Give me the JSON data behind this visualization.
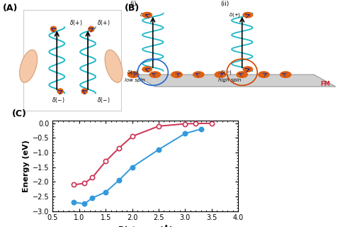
{
  "pink_x": [
    0.9,
    1.1,
    1.25,
    1.5,
    1.75,
    2.0,
    2.5,
    3.0,
    3.2,
    3.5
  ],
  "pink_y": [
    -2.1,
    -2.05,
    -1.85,
    -1.3,
    -0.85,
    -0.45,
    -0.1,
    -0.02,
    -0.01,
    -0.0
  ],
  "blue_x": [
    0.9,
    1.1,
    1.25,
    1.5,
    1.75,
    2.0,
    2.5,
    3.0,
    3.3
  ],
  "blue_y": [
    -2.7,
    -2.75,
    -2.55,
    -2.35,
    -1.95,
    -1.5,
    -0.9,
    -0.35,
    -0.2
  ],
  "pink_color": "#cc3355",
  "blue_color": "#3399dd",
  "xlabel": "Distance (Å)",
  "ylabel": "Energy (eV)",
  "xlim": [
    0.5,
    4.0
  ],
  "ylim": [
    -3.0,
    0.1
  ],
  "yticks": [
    0.0,
    -0.5,
    -1.0,
    -1.5,
    -2.0,
    -2.5,
    -3.0
  ],
  "xticks": [
    0.5,
    1.0,
    1.5,
    2.0,
    2.5,
    3.0,
    3.5,
    4.0
  ],
  "panel_c_label": "(C)",
  "panel_a_label": "(A)",
  "panel_b_label": "(B)",
  "helix_color": "#20b8c8",
  "orange": "#e06010",
  "fig_bg": "#ffffff",
  "ax_bg": "#ffffff",
  "gray_surface": "#d0d0d0"
}
